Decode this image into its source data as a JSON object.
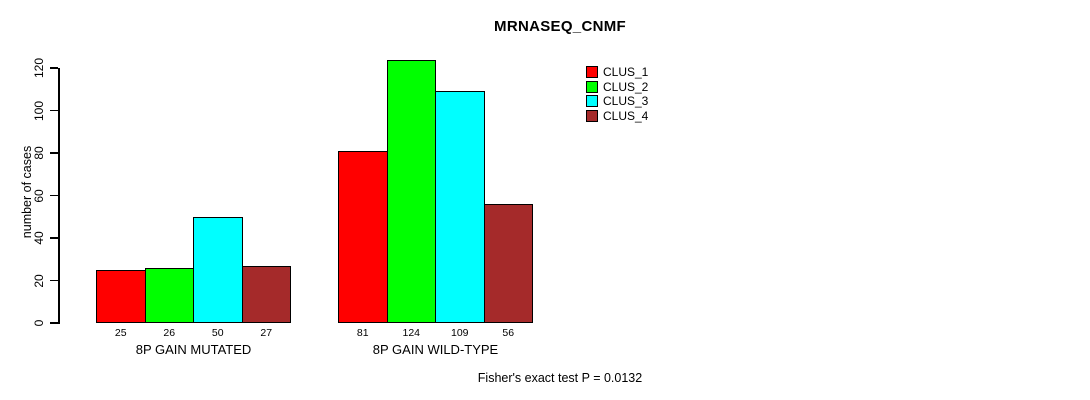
{
  "title": "MRNASEQ_CNMF",
  "chart_data": {
    "type": "bar",
    "title": "MRNASEQ_CNMF",
    "xlabel": "",
    "ylabel": "number of cases",
    "ylim": [
      0,
      124
    ],
    "yticks": [
      0,
      20,
      40,
      60,
      80,
      100,
      120
    ],
    "grid": false,
    "legend_position": "top-right",
    "bar_value_labels_shown": true,
    "categories": [
      "8P GAIN MUTATED",
      "8P GAIN WILD-TYPE"
    ],
    "series": [
      {
        "name": "CLUS_1",
        "color": "#FF0000",
        "values": [
          25,
          81
        ]
      },
      {
        "name": "CLUS_2",
        "color": "#00FF00",
        "values": [
          26,
          124
        ]
      },
      {
        "name": "CLUS_3",
        "color": "#00FFFF",
        "values": [
          50,
          109
        ]
      },
      {
        "name": "CLUS_4",
        "color": "#A52A2A",
        "values": [
          27,
          56
        ]
      }
    ]
  },
  "footer": {
    "caption": "Fisher's exact test P = 0.0132"
  }
}
